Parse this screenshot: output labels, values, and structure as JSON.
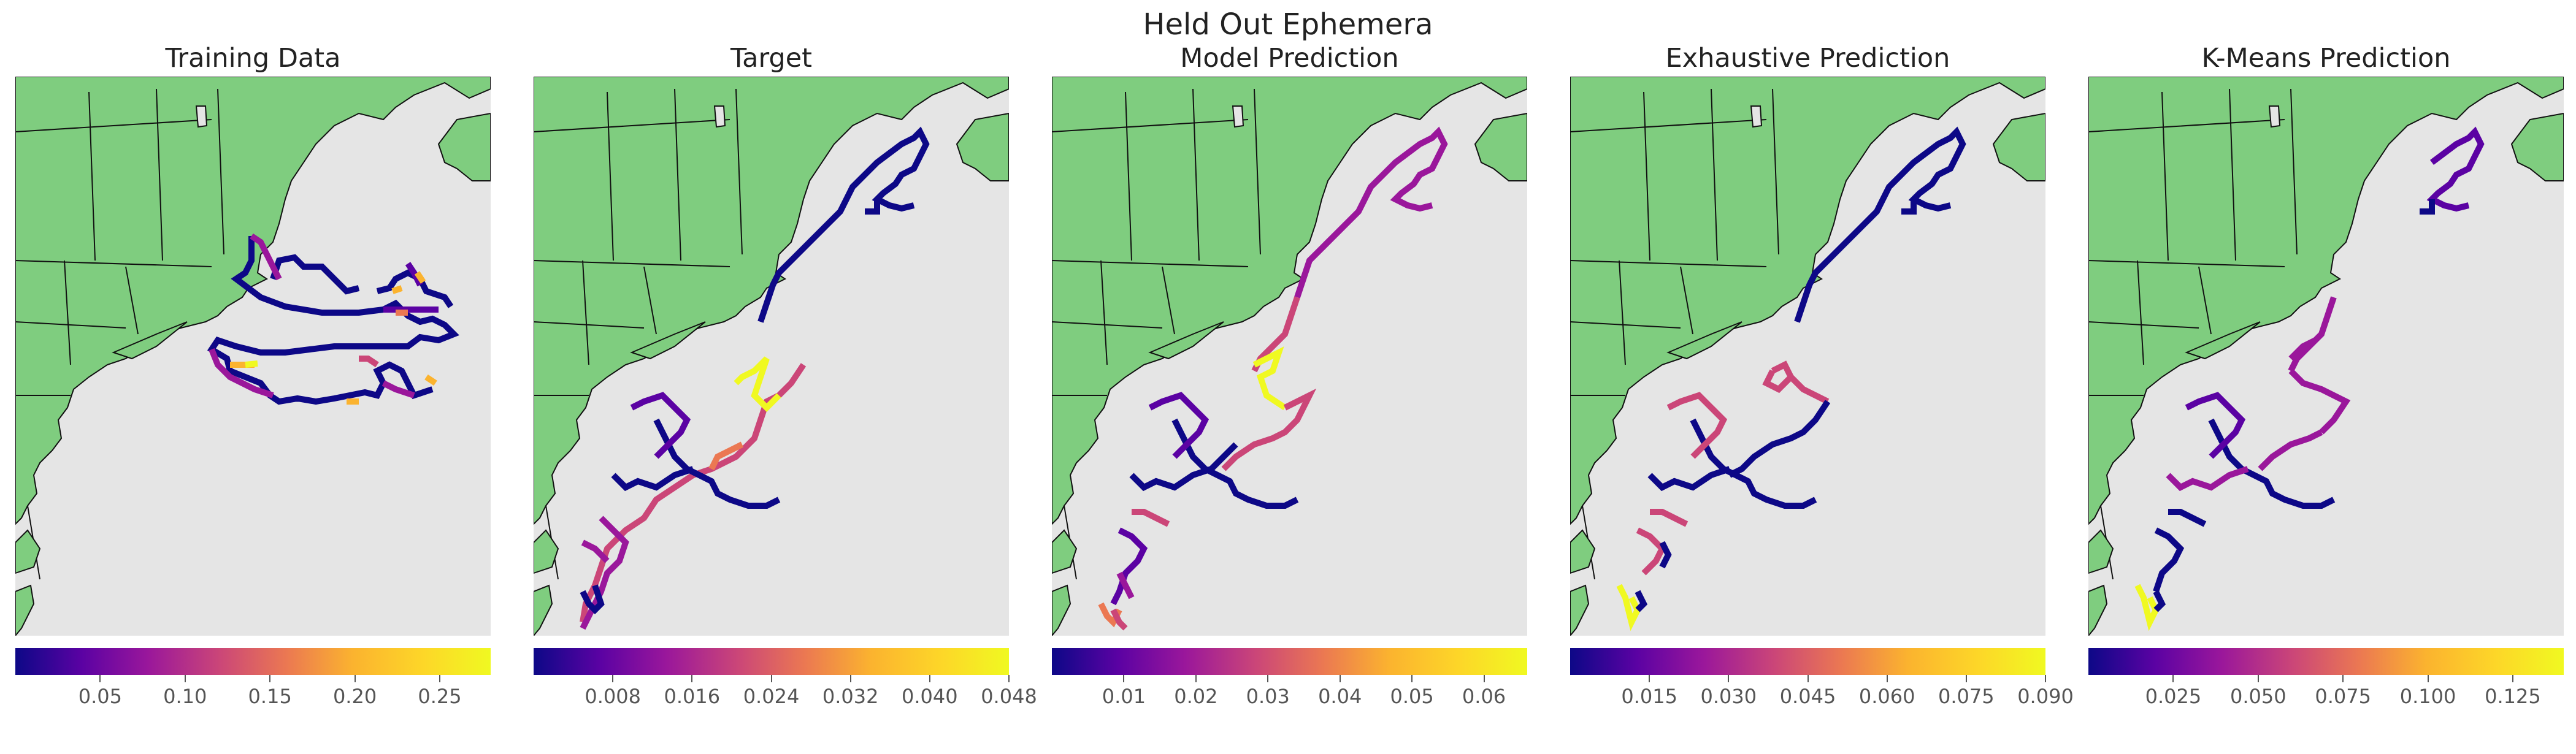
{
  "figure": {
    "title": "Held Out Ephemera"
  },
  "colors": {
    "land": "#7fcd7f",
    "water": "#e5e5e5",
    "border": "#111111"
  },
  "colormap": "plasma",
  "panels": [
    {
      "id": "training-data",
      "title": "Training Data",
      "colorbar": {
        "min": 0.0,
        "max": 0.28,
        "ticks": [
          {
            "v": 0.05,
            "label": "0.05"
          },
          {
            "v": 0.1,
            "label": "0.10"
          },
          {
            "v": 0.15,
            "label": "0.15"
          },
          {
            "v": 0.2,
            "label": "0.20"
          },
          {
            "v": 0.25,
            "label": "0.25"
          }
        ]
      }
    },
    {
      "id": "target",
      "title": "Target",
      "colorbar": {
        "min": 0.0,
        "max": 0.048,
        "ticks": [
          {
            "v": 0.008,
            "label": "0.008"
          },
          {
            "v": 0.016,
            "label": "0.016"
          },
          {
            "v": 0.024,
            "label": "0.024"
          },
          {
            "v": 0.032,
            "label": "0.032"
          },
          {
            "v": 0.04,
            "label": "0.040"
          },
          {
            "v": 0.048,
            "label": "0.048"
          }
        ]
      }
    },
    {
      "id": "model-prediction",
      "title": "Model Prediction",
      "colorbar": {
        "min": 0.0,
        "max": 0.066,
        "ticks": [
          {
            "v": 0.01,
            "label": "0.01"
          },
          {
            "v": 0.02,
            "label": "0.02"
          },
          {
            "v": 0.03,
            "label": "0.03"
          },
          {
            "v": 0.04,
            "label": "0.04"
          },
          {
            "v": 0.05,
            "label": "0.05"
          },
          {
            "v": 0.06,
            "label": "0.06"
          }
        ]
      }
    },
    {
      "id": "exhaustive-prediction",
      "title": "Exhaustive Prediction",
      "colorbar": {
        "min": 0.0,
        "max": 0.09,
        "ticks": [
          {
            "v": 0.015,
            "label": "0.015"
          },
          {
            "v": 0.03,
            "label": "0.030"
          },
          {
            "v": 0.045,
            "label": "0.045"
          },
          {
            "v": 0.06,
            "label": "0.060"
          },
          {
            "v": 0.075,
            "label": "0.075"
          },
          {
            "v": 0.09,
            "label": "0.090"
          }
        ]
      }
    },
    {
      "id": "kmeans-prediction",
      "title": "K-Means Prediction",
      "colorbar": {
        "min": 0.0,
        "max": 0.14,
        "ticks": [
          {
            "v": 0.025,
            "label": "0.025"
          },
          {
            "v": 0.05,
            "label": "0.050"
          },
          {
            "v": 0.075,
            "label": "0.075"
          },
          {
            "v": 0.1,
            "label": "0.100"
          },
          {
            "v": 0.125,
            "label": "0.125"
          }
        ]
      }
    }
  ]
}
